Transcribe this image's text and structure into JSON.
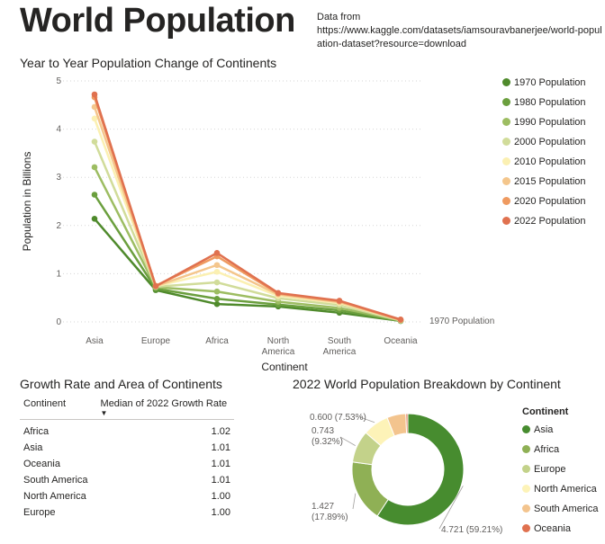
{
  "header": {
    "title": "World Population",
    "source_prefix": "Data from",
    "source_url": "https://www.kaggle.com/datasets/iamsouravbanerjee/world-population-dataset?resource=download"
  },
  "chart_data": [
    {
      "type": "line",
      "title": "Year to Year Population Change of Continents",
      "xlabel": "Continent",
      "ylabel": "Population in Billions",
      "categories": [
        "Asia",
        "Europe",
        "Africa",
        "North America",
        "South America",
        "Oceania"
      ],
      "category_lines": [
        [
          "Asia"
        ],
        [
          "Europe"
        ],
        [
          "Africa"
        ],
        [
          "North",
          "America"
        ],
        [
          "South",
          "America"
        ],
        [
          "Oceania"
        ]
      ],
      "ylim": [
        0,
        5
      ],
      "yticks": [
        "0",
        "1",
        "2",
        "3",
        "4",
        "5"
      ],
      "grid": true,
      "legend_position": "right",
      "end_label": "1970 Population",
      "series": [
        {
          "name": "1970 Population",
          "color": "#4f8a2c",
          "values": [
            2.14,
            0.66,
            0.37,
            0.32,
            0.19,
            0.02
          ]
        },
        {
          "name": "1980 Population",
          "color": "#6b9f3e",
          "values": [
            2.64,
            0.69,
            0.48,
            0.36,
            0.24,
            0.02
          ]
        },
        {
          "name": "1990 Population",
          "color": "#9dbd62",
          "values": [
            3.21,
            0.72,
            0.63,
            0.42,
            0.29,
            0.03
          ]
        },
        {
          "name": "2000 Population",
          "color": "#d1dc9a",
          "values": [
            3.74,
            0.73,
            0.82,
            0.49,
            0.35,
            0.03
          ]
        },
        {
          "name": "2010 Population",
          "color": "#fbf0b2",
          "values": [
            4.22,
            0.74,
            1.04,
            0.54,
            0.39,
            0.04
          ]
        },
        {
          "name": "2015 Population",
          "color": "#f4c68c",
          "values": [
            4.46,
            0.74,
            1.18,
            0.57,
            0.41,
            0.04
          ]
        },
        {
          "name": "2020 Population",
          "color": "#ef9a60",
          "values": [
            4.66,
            0.75,
            1.36,
            0.59,
            0.43,
            0.04
          ]
        },
        {
          "name": "2022 Population",
          "color": "#e0714f",
          "values": [
            4.72,
            0.74,
            1.43,
            0.6,
            0.44,
            0.05
          ]
        }
      ]
    },
    {
      "type": "table",
      "title": "Growth Rate and Area of Continents",
      "columns": [
        "Continent",
        "Median of 2022 Growth Rate"
      ],
      "rows": [
        [
          "Africa",
          "1.02"
        ],
        [
          "Asia",
          "1.01"
        ],
        [
          "Oceania",
          "1.01"
        ],
        [
          "South America",
          "1.01"
        ],
        [
          "North America",
          "1.00"
        ],
        [
          "Europe",
          "1.00"
        ]
      ]
    },
    {
      "type": "pie",
      "title": "2022 World Population Breakdown by Continent",
      "legend_title": "Continent",
      "legend_position": "right",
      "slices": [
        {
          "name": "Asia",
          "value": 4.721,
          "label": "4.721 (59.21%)",
          "color": "#478c2f"
        },
        {
          "name": "Africa",
          "value": 1.427,
          "label": "1.427 (17.89%)",
          "color": "#8fb055"
        },
        {
          "name": "Europe",
          "value": 0.743,
          "label": "0.743 (9.32%)",
          "color": "#c3d28a"
        },
        {
          "name": "North America",
          "value": 0.6,
          "label": "0.600 (7.53%)",
          "color": "#fdf3b8"
        },
        {
          "name": "South America",
          "value": 0.437,
          "label": "",
          "color": "#f3c48e"
        },
        {
          "name": "Oceania",
          "value": 0.045,
          "label": "",
          "color": "#e0714f"
        }
      ]
    }
  ]
}
